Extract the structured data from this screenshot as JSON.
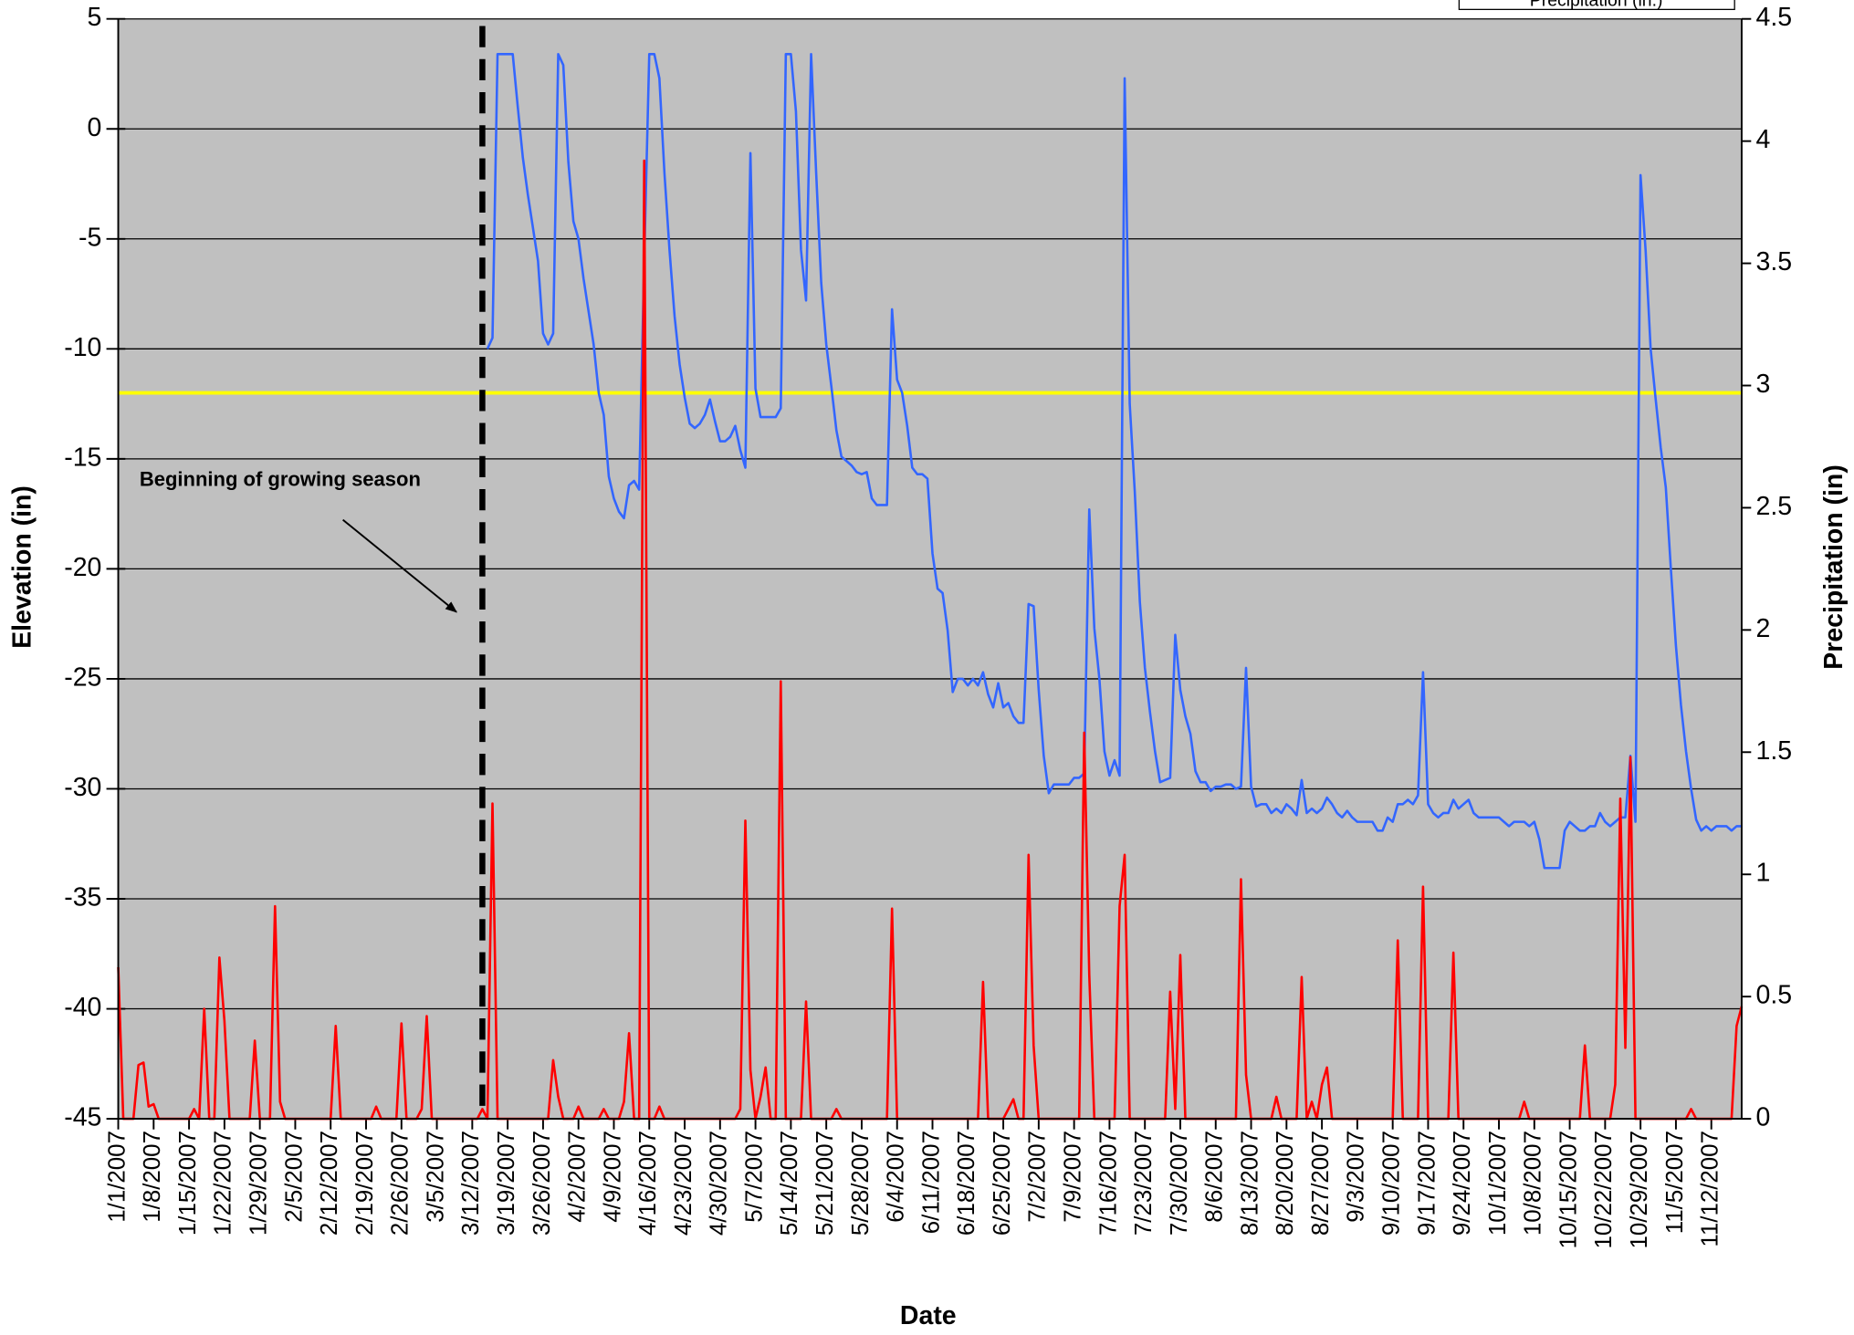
{
  "chart_data": {
    "type": "line",
    "xlabel": "Date",
    "ylabel": "Elevation (in)",
    "y2label": "Precipitation (in)",
    "background": "#c0c0c0",
    "grid": true,
    "legend": "top-right",
    "annotations": [
      {
        "text": "Beginning of growing season"
      }
    ],
    "hlines": [
      {
        "value": -12,
        "color": "#ffff00"
      }
    ],
    "vlines": [
      {
        "x": "3/14/2007",
        "color": "#000000",
        "dash": true
      }
    ],
    "xlim": [
      "1/1/2007",
      "11/18/2007"
    ],
    "ylim": [
      -45,
      5
    ],
    "yticks": [
      -45,
      -40,
      -35,
      -30,
      -25,
      -20,
      -15,
      -10,
      -5,
      0,
      5
    ],
    "y2lim": [
      0,
      4.5
    ],
    "y2ticks": [
      0,
      0.5,
      1,
      1.5,
      2,
      2.5,
      3,
      3.5,
      4,
      4.5
    ],
    "xticks": [
      "1/1/2007",
      "1/8/2007",
      "1/15/2007",
      "1/22/2007",
      "1/29/2007",
      "2/5/2007",
      "2/12/2007",
      "2/19/2007",
      "2/26/2007",
      "3/5/2007",
      "3/12/2007",
      "3/19/2007",
      "3/26/2007",
      "4/2/2007",
      "4/9/2007",
      "4/16/2007",
      "4/23/2007",
      "4/30/2007",
      "5/7/2007",
      "5/14/2007",
      "5/21/2007",
      "5/28/2007",
      "6/4/2007",
      "6/11/2007",
      "6/18/2007",
      "6/25/2007",
      "7/2/2007",
      "7/9/2007",
      "7/16/2007",
      "7/23/2007",
      "7/30/2007",
      "8/6/2007",
      "8/13/2007",
      "8/20/2007",
      "8/27/2007",
      "9/3/2007",
      "9/10/2007",
      "9/17/2007",
      "9/24/2007",
      "10/1/2007",
      "10/8/2007",
      "10/15/2007",
      "10/22/2007",
      "10/29/2007",
      "11/5/2007",
      "11/12/2007"
    ],
    "x": [
      "1/1/2007",
      "1/2/2007",
      "1/3/2007",
      "1/4/2007",
      "1/5/2007",
      "1/6/2007",
      "1/7/2007",
      "1/8/2007",
      "1/9/2007",
      "1/10/2007",
      "1/11/2007",
      "1/12/2007",
      "1/13/2007",
      "1/14/2007",
      "1/15/2007",
      "1/16/2007",
      "1/17/2007",
      "1/18/2007",
      "1/19/2007",
      "1/20/2007",
      "1/21/2007",
      "1/22/2007",
      "1/23/2007",
      "1/24/2007",
      "1/25/2007",
      "1/26/2007",
      "1/27/2007",
      "1/28/2007",
      "1/29/2007",
      "1/30/2007",
      "1/31/2007",
      "2/1/2007",
      "2/2/2007",
      "2/3/2007",
      "2/4/2007",
      "2/5/2007",
      "2/6/2007",
      "2/7/2007",
      "2/8/2007",
      "2/9/2007",
      "2/10/2007",
      "2/11/2007",
      "2/12/2007",
      "2/13/2007",
      "2/14/2007",
      "2/15/2007",
      "2/16/2007",
      "2/17/2007",
      "2/18/2007",
      "2/19/2007",
      "2/20/2007",
      "2/21/2007",
      "2/22/2007",
      "2/23/2007",
      "2/24/2007",
      "2/25/2007",
      "2/26/2007",
      "2/27/2007",
      "2/28/2007",
      "3/1/2007",
      "3/2/2007",
      "3/3/2007",
      "3/4/2007",
      "3/5/2007",
      "3/6/2007",
      "3/7/2007",
      "3/8/2007",
      "3/9/2007",
      "3/10/2007",
      "3/11/2007",
      "3/12/2007",
      "3/13/2007",
      "3/14/2007",
      "3/15/2007",
      "3/16/2007",
      "3/17/2007",
      "3/18/2007",
      "3/19/2007",
      "3/20/2007",
      "3/21/2007",
      "3/22/2007",
      "3/23/2007",
      "3/24/2007",
      "3/25/2007",
      "3/26/2007",
      "3/27/2007",
      "3/28/2007",
      "3/29/2007",
      "3/30/2007",
      "3/31/2007",
      "4/1/2007",
      "4/2/2007",
      "4/3/2007",
      "4/4/2007",
      "4/5/2007",
      "4/6/2007",
      "4/7/2007",
      "4/8/2007",
      "4/9/2007",
      "4/10/2007",
      "4/11/2007",
      "4/12/2007",
      "4/13/2007",
      "4/14/2007",
      "4/15/2007",
      "4/16/2007",
      "4/17/2007",
      "4/18/2007",
      "4/19/2007",
      "4/20/2007",
      "4/21/2007",
      "4/22/2007",
      "4/23/2007",
      "4/24/2007",
      "4/25/2007",
      "4/26/2007",
      "4/27/2007",
      "4/28/2007",
      "4/29/2007",
      "4/30/2007",
      "5/1/2007",
      "5/2/2007",
      "5/3/2007",
      "5/4/2007",
      "5/5/2007",
      "5/6/2007",
      "5/7/2007",
      "5/8/2007",
      "5/9/2007",
      "5/10/2007",
      "5/11/2007",
      "5/12/2007",
      "5/13/2007",
      "5/14/2007",
      "5/15/2007",
      "5/16/2007",
      "5/17/2007",
      "5/18/2007",
      "5/19/2007",
      "5/20/2007",
      "5/21/2007",
      "5/22/2007",
      "5/23/2007",
      "5/24/2007",
      "5/25/2007",
      "5/26/2007",
      "5/27/2007",
      "5/28/2007",
      "5/29/2007",
      "5/30/2007",
      "5/31/2007",
      "6/1/2007",
      "6/2/2007",
      "6/3/2007",
      "6/4/2007",
      "6/5/2007",
      "6/6/2007",
      "6/7/2007",
      "6/8/2007",
      "6/9/2007",
      "6/10/2007",
      "6/11/2007",
      "6/12/2007",
      "6/13/2007",
      "6/14/2007",
      "6/15/2007",
      "6/16/2007",
      "6/17/2007",
      "6/18/2007",
      "6/19/2007",
      "6/20/2007",
      "6/21/2007",
      "6/22/2007",
      "6/23/2007",
      "6/24/2007",
      "6/25/2007",
      "6/26/2007",
      "6/27/2007",
      "6/28/2007",
      "6/29/2007",
      "6/30/2007",
      "7/1/2007",
      "7/2/2007",
      "7/3/2007",
      "7/4/2007",
      "7/5/2007",
      "7/6/2007",
      "7/7/2007",
      "7/8/2007",
      "7/9/2007",
      "7/10/2007",
      "7/11/2007",
      "7/12/2007",
      "7/13/2007",
      "7/14/2007",
      "7/15/2007",
      "7/16/2007",
      "7/17/2007",
      "7/18/2007",
      "7/19/2007",
      "7/20/2007",
      "7/21/2007",
      "7/22/2007",
      "7/23/2007",
      "7/24/2007",
      "7/25/2007",
      "7/26/2007",
      "7/27/2007",
      "7/28/2007",
      "7/29/2007",
      "7/30/2007",
      "7/31/2007",
      "8/1/2007",
      "8/2/2007",
      "8/3/2007",
      "8/4/2007",
      "8/5/2007",
      "8/6/2007",
      "8/7/2007",
      "8/8/2007",
      "8/9/2007",
      "8/10/2007",
      "8/11/2007",
      "8/12/2007",
      "8/13/2007",
      "8/14/2007",
      "8/15/2007",
      "8/16/2007",
      "8/17/2007",
      "8/18/2007",
      "8/19/2007",
      "8/20/2007",
      "8/21/2007",
      "8/22/2007",
      "8/23/2007",
      "8/24/2007",
      "8/25/2007",
      "8/26/2007",
      "8/27/2007",
      "8/28/2007",
      "8/29/2007",
      "8/30/2007",
      "8/31/2007",
      "9/1/2007",
      "9/2/2007",
      "9/3/2007",
      "9/4/2007",
      "9/5/2007",
      "9/6/2007",
      "9/7/2007",
      "9/8/2007",
      "9/9/2007",
      "9/10/2007",
      "9/11/2007",
      "9/12/2007",
      "9/13/2007",
      "9/14/2007",
      "9/15/2007",
      "9/16/2007",
      "9/17/2007",
      "9/18/2007",
      "9/19/2007",
      "9/20/2007",
      "9/21/2007",
      "9/22/2007",
      "9/23/2007",
      "9/24/2007",
      "9/25/2007",
      "9/26/2007",
      "9/27/2007",
      "9/28/2007",
      "9/29/2007",
      "9/30/2007",
      "10/1/2007",
      "10/2/2007",
      "10/3/2007",
      "10/4/2007",
      "10/5/2007",
      "10/6/2007",
      "10/7/2007",
      "10/8/2007",
      "10/9/2007",
      "10/10/2007",
      "10/11/2007",
      "10/12/2007",
      "10/13/2007",
      "10/14/2007",
      "10/15/2007",
      "10/16/2007",
      "10/17/2007",
      "10/18/2007",
      "10/19/2007",
      "10/20/2007",
      "10/21/2007",
      "10/22/2007",
      "10/23/2007",
      "10/24/2007",
      "10/25/2007",
      "10/26/2007",
      "10/27/2007",
      "10/28/2007",
      "10/29/2007",
      "10/30/2007",
      "10/31/2007",
      "11/1/2007",
      "11/2/2007",
      "11/3/2007",
      "11/4/2007",
      "11/5/2007",
      "11/6/2007",
      "11/7/2007",
      "11/8/2007",
      "11/9/2007",
      "11/10/2007",
      "11/11/2007",
      "11/12/2007",
      "11/13/2007",
      "11/14/2007",
      "11/15/2007",
      "11/16/2007",
      "11/17/2007",
      "11/18/2007"
    ],
    "series": [
      {
        "color": "#3366ff",
        "values": [
          null,
          null,
          null,
          null,
          null,
          null,
          null,
          null,
          null,
          null,
          null,
          null,
          null,
          null,
          null,
          null,
          null,
          null,
          null,
          null,
          null,
          null,
          null,
          null,
          null,
          null,
          null,
          null,
          null,
          null,
          null,
          null,
          null,
          null,
          null,
          null,
          null,
          null,
          null,
          null,
          null,
          null,
          null,
          null,
          null,
          null,
          null,
          null,
          null,
          null,
          null,
          null,
          null,
          null,
          null,
          null,
          null,
          null,
          null,
          null,
          null,
          null,
          null,
          null,
          null,
          null,
          null,
          null,
          null,
          null,
          null,
          null,
          null,
          -10,
          -9.5,
          3.4,
          3.4,
          3.4,
          3.4,
          1.0,
          -1.3,
          -3,
          -4.5,
          -6,
          -9.3,
          -9.8,
          -9.3,
          3.4,
          2.9,
          -1.5,
          -4.2,
          -5,
          -6.8,
          -8.3,
          -9.8,
          -12,
          -13,
          -15.8,
          -16.8,
          -17.4,
          -17.7,
          -16.2,
          -16,
          -16.4,
          -6,
          3.4,
          3.4,
          2.3,
          -2,
          -5.5,
          -8.5,
          -10.7,
          -12.2,
          -13.4,
          -13.6,
          -13.4,
          -13,
          -12.3,
          -13.3,
          -14.2,
          -14.2,
          -14,
          -13.5,
          -14.6,
          -15.4,
          -1.1,
          -11.8,
          -13.1,
          -13.1,
          -13.1,
          -13.1,
          -12.7,
          3.4,
          3.4,
          0.8,
          -5.5,
          -7.8,
          3.4,
          -2,
          -7,
          -9.8,
          -11.7,
          -13.7,
          -14.9,
          -15.1,
          -15.3,
          -15.6,
          -15.7,
          -15.6,
          -16.8,
          -17.1,
          -17.1,
          -17.1,
          -8.2,
          -11.4,
          -12,
          -13.5,
          -15.4,
          -15.7,
          -15.7,
          -15.9,
          -19.3,
          -20.9,
          -21.1,
          -22.8,
          -25.6,
          -25,
          -25,
          -25.3,
          -25,
          -25.3,
          -24.7,
          -25.7,
          -26.3,
          -25.2,
          -26.3,
          -26.1,
          -26.7,
          -27,
          -27,
          -21.6,
          -21.7,
          -25.5,
          -28.5,
          -30.2,
          -29.8,
          -29.8,
          -29.8,
          -29.8,
          -29.5,
          -29.5,
          -29.3,
          -17.3,
          -22.7,
          -25,
          -28.3,
          -29.4,
          -28.7,
          -29.4,
          2.3,
          -12.5,
          -16.5,
          -21.5,
          -24.5,
          -26.5,
          -28.3,
          -29.7,
          -29.6,
          -29.5,
          -23,
          -25.5,
          -26.7,
          -27.5,
          -29.2,
          -29.7,
          -29.7,
          -30.1,
          -29.9,
          -29.9,
          -29.8,
          -29.8,
          -30,
          -29.9,
          -24.5,
          -29.9,
          -30.8,
          -30.7,
          -30.7,
          -31.1,
          -30.9,
          -31.1,
          -30.7,
          -30.9,
          -31.2,
          -29.6,
          -31.1,
          -30.9,
          -31.1,
          -30.9,
          -30.4,
          -30.7,
          -31.1,
          -31.3,
          -31,
          -31.3,
          -31.5,
          -31.5,
          -31.5,
          -31.5,
          -31.9,
          -31.9,
          -31.3,
          -31.5,
          -30.7,
          -30.7,
          -30.5,
          -30.7,
          -30.3,
          -24.7,
          -30.7,
          -31.1,
          -31.3,
          -31.1,
          -31.1,
          -30.5,
          -30.9,
          -30.7,
          -30.5,
          -31.1,
          -31.3,
          -31.3,
          -31.3,
          -31.3,
          -31.3,
          -31.5,
          -31.7,
          -31.5,
          -31.5,
          -31.5,
          -31.7,
          -31.5,
          -32.3,
          -33.6,
          -33.6,
          -33.6,
          -33.6,
          -31.9,
          -31.5,
          -31.7,
          -31.9,
          -31.9,
          -31.7,
          -31.7,
          -31.1,
          -31.5,
          -31.7,
          -31.5,
          -31.3,
          -31.3,
          -28.5,
          -31.5,
          -2.1,
          -5.5,
          -10,
          -12.3,
          -14.5,
          -16.3,
          -20,
          -23.5,
          -26.2,
          -28.3,
          -30,
          -31.4,
          -31.9,
          -31.7,
          -31.9,
          -31.7,
          -31.7,
          -31.7,
          -31.9,
          -31.7,
          -31.7
        ]
      },
      {
        "name": "Precipitation (in.)",
        "color": "#ff0000",
        "axis": "y2",
        "values": [
          0.62,
          0,
          0,
          0,
          0.22,
          0.23,
          0.05,
          0.06,
          0,
          0,
          0,
          0,
          0,
          0,
          0,
          0.04,
          0,
          0.45,
          0,
          0,
          0.66,
          0.4,
          0,
          0,
          0,
          0,
          0,
          0.32,
          0,
          0,
          0,
          0.87,
          0.07,
          0,
          0,
          0,
          0,
          0,
          0,
          0,
          0,
          0,
          0,
          0.38,
          0,
          0,
          0,
          0,
          0,
          0,
          0,
          0.05,
          0,
          0,
          0,
          0,
          0.39,
          0,
          0,
          0,
          0.04,
          0.42,
          0,
          0,
          0,
          0,
          0,
          0,
          0,
          0,
          0,
          0,
          0.04,
          0,
          1.29,
          0,
          0,
          0,
          0,
          0,
          0,
          0,
          0,
          0,
          0,
          0,
          0.24,
          0.09,
          0,
          0,
          0,
          0.05,
          0,
          0,
          0,
          0,
          0.04,
          0,
          0,
          0,
          0.07,
          0.35,
          0,
          0,
          3.92,
          0,
          0,
          0.05,
          0,
          0,
          0,
          0,
          0,
          0,
          0,
          0,
          0,
          0,
          0,
          0,
          0,
          0,
          0,
          0.04,
          1.22,
          0.2,
          0,
          0.09,
          0.21,
          0,
          0,
          1.79,
          0,
          0,
          0,
          0,
          0.48,
          0,
          0,
          0,
          0,
          0,
          0.04,
          0,
          0,
          0,
          0,
          0,
          0,
          0,
          0,
          0,
          0,
          0.86,
          0,
          0,
          0,
          0,
          0,
          0,
          0,
          0,
          0,
          0,
          0,
          0,
          0,
          0,
          0,
          0,
          0,
          0.56,
          0,
          0,
          0,
          0,
          0.04,
          0.08,
          0,
          0,
          1.08,
          0.3,
          0,
          0,
          0,
          0,
          0,
          0,
          0,
          0,
          0,
          1.58,
          0.59,
          0,
          0,
          0,
          0,
          0,
          0.87,
          1.08,
          0,
          0,
          0,
          0,
          0,
          0,
          0,
          0,
          0.52,
          0.04,
          0.67,
          0,
          0,
          0,
          0,
          0,
          0,
          0,
          0,
          0,
          0,
          0,
          0.98,
          0.18,
          0,
          0,
          0,
          0,
          0,
          0.09,
          0,
          0,
          0,
          0,
          0.58,
          0,
          0.07,
          0,
          0.14,
          0.21,
          0,
          0,
          0,
          0,
          0,
          0,
          0,
          0,
          0,
          0,
          0,
          0,
          0,
          0.73,
          0,
          0,
          0,
          0,
          0.95,
          0,
          0,
          0,
          0,
          0,
          0.68,
          0,
          0,
          0,
          0,
          0,
          0,
          0,
          0,
          0,
          0,
          0,
          0,
          0,
          0.07,
          0,
          0,
          0,
          0,
          0,
          0,
          0,
          0,
          0,
          0,
          0,
          0.3,
          0,
          0,
          0,
          0,
          0,
          0.14,
          1.31,
          0.29,
          1.48,
          0,
          0,
          0,
          0,
          0,
          0,
          0,
          0,
          0,
          0,
          0,
          0.04,
          0,
          0,
          0,
          0,
          0,
          0,
          0,
          0,
          0.38,
          0.46
        ]
      }
    ]
  }
}
